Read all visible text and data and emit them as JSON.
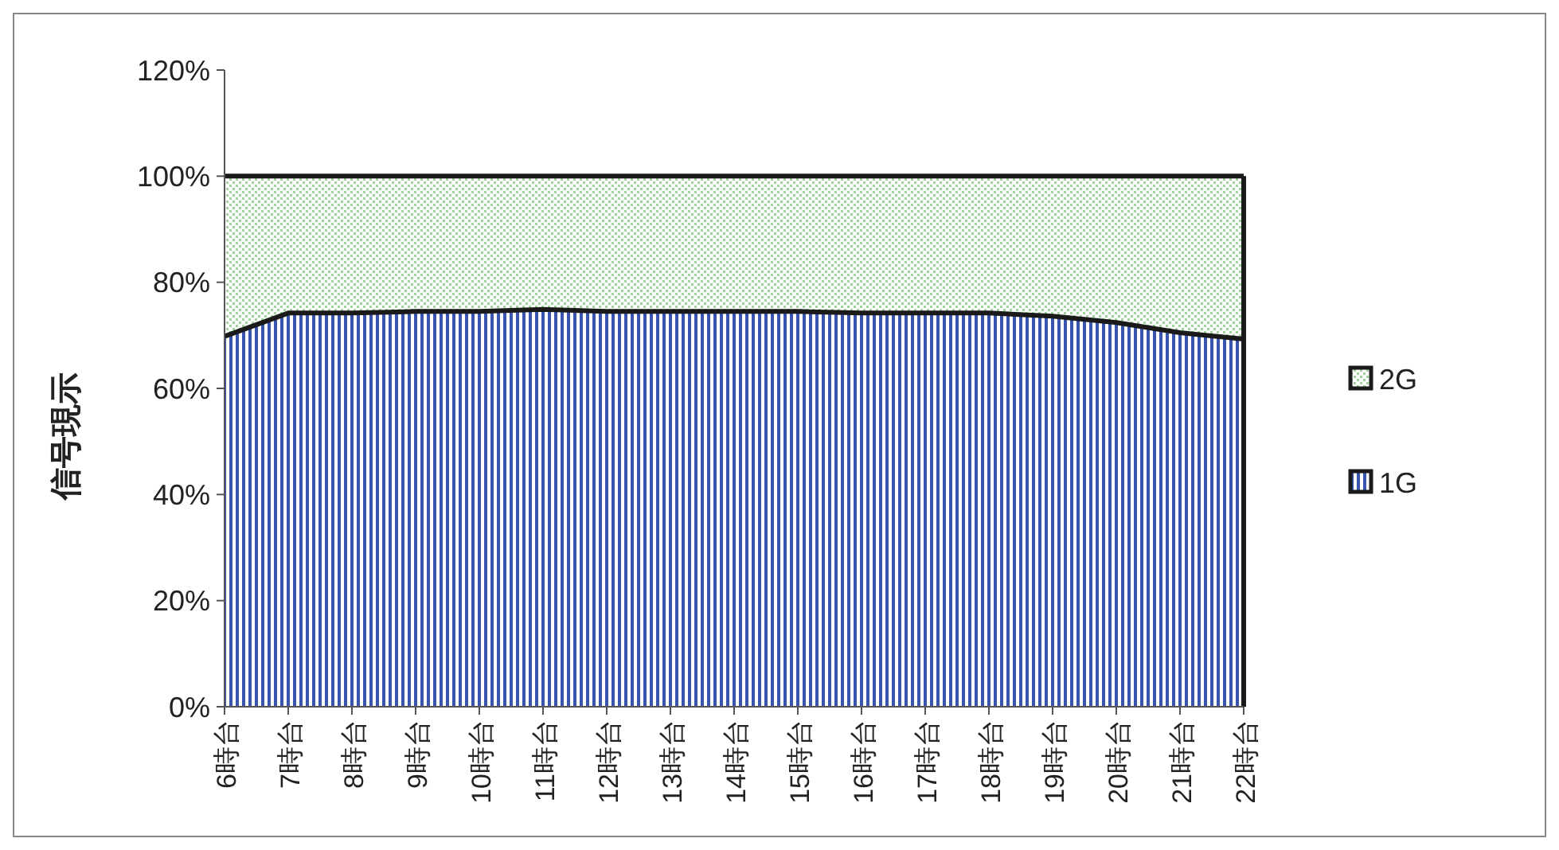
{
  "chart_data": {
    "type": "area",
    "stacked": true,
    "ylabel": "信号現示",
    "categories": [
      "6時台",
      "7時台",
      "8時台",
      "9時台",
      "10時台",
      "11時台",
      "12時台",
      "13時台",
      "14時台",
      "15時台",
      "16時台",
      "17時台",
      "18時台",
      "19時台",
      "20時台",
      "21時台",
      "22時台"
    ],
    "series": [
      {
        "name": "1G",
        "color": "#3a55b0",
        "values": [
          69.8,
          74.2,
          74.2,
          74.5,
          74.5,
          74.9,
          74.5,
          74.5,
          74.5,
          74.5,
          74.2,
          74.2,
          74.2,
          73.6,
          72.4,
          70.5,
          69.3
        ]
      },
      {
        "name": "2G",
        "color": "#9fd49a",
        "values": [
          30.2,
          25.8,
          25.8,
          25.5,
          25.5,
          25.1,
          25.5,
          25.5,
          25.5,
          25.5,
          25.8,
          25.8,
          25.8,
          26.4,
          27.6,
          29.5,
          30.7
        ]
      }
    ],
    "ylim": [
      0,
      120
    ],
    "yticks": [
      {
        "value": 0,
        "label": "0%"
      },
      {
        "value": 20,
        "label": "20%"
      },
      {
        "value": 40,
        "label": "40%"
      },
      {
        "value": 60,
        "label": "60%"
      },
      {
        "value": 80,
        "label": "80%"
      },
      {
        "value": 100,
        "label": "100%"
      },
      {
        "value": 120,
        "label": "120%"
      }
    ],
    "legend": "right"
  }
}
